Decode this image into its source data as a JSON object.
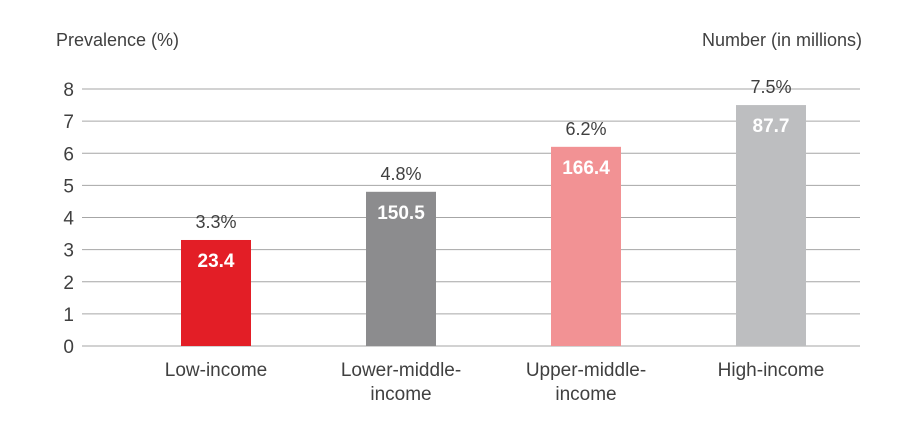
{
  "chart_data": {
    "type": "bar",
    "ylabel": "Prevalence (%)",
    "right_label": "Number (in millions)",
    "ylim": [
      0,
      8
    ],
    "yticks": [
      0,
      1,
      2,
      3,
      4,
      5,
      6,
      7,
      8
    ],
    "categories": [
      "Low-income",
      "Lower-middle-income",
      "Upper-middle-income",
      "High-income"
    ],
    "category_lines": [
      [
        "Low-income"
      ],
      [
        "Lower-middle-",
        "income"
      ],
      [
        "Upper-middle-",
        "income"
      ],
      [
        "High-income"
      ]
    ],
    "values": [
      3.3,
      4.8,
      6.2,
      7.5
    ],
    "value_labels": [
      "3.3%",
      "4.8%",
      "6.2%",
      "7.5%"
    ],
    "numbers": [
      "23.4",
      "150.5",
      "166.4",
      "87.7"
    ],
    "colors": [
      "#e31e26",
      "#8c8c8e",
      "#f29294",
      "#bdbec0"
    ],
    "grid": true
  }
}
